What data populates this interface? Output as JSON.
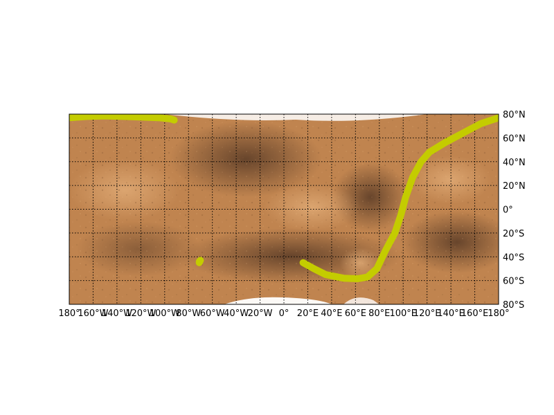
{
  "map": {
    "projection": "equirectangular",
    "lon_range": [
      -180,
      180
    ],
    "lat_range": [
      -80,
      80
    ],
    "grid": true,
    "meridians_step": 20,
    "parallels_step": 20,
    "colors": {
      "terrain_base": "#c0844f",
      "terrain_dark": "#6e4a2e",
      "terrain_light": "#d9a06a",
      "polar_cap": "#ffffff",
      "track": "#c4cc00"
    },
    "lat_labels": [
      "80°N",
      "60°N",
      "40°N",
      "20°N",
      "0°",
      "20°S",
      "40°S",
      "60°S",
      "80°S"
    ],
    "lon_labels": [
      "180°",
      "160°W",
      "140°W",
      "120°W",
      "100°W",
      "80°W",
      "60°W",
      "40°W",
      "20°W",
      "0°",
      "20°E",
      "40°E",
      "60°E",
      "80°E",
      "100°E",
      "120°E",
      "140°E",
      "160°E",
      "180°"
    ]
  },
  "chart_data": {
    "type": "line",
    "xlabel": "",
    "ylabel": "",
    "xlim": [
      -180,
      180
    ],
    "ylim": [
      -80,
      80
    ],
    "series": [
      {
        "segments": [
          [
            [
              -180,
              77
            ],
            [
              -165,
              78
            ],
            [
              -150,
              78.5
            ],
            [
              -135,
              78
            ],
            [
              -120,
              77.5
            ],
            [
              -105,
              77
            ],
            [
              -95,
              76
            ],
            [
              -92,
              75
            ]
          ],
          [
            [
              -71,
              -45
            ],
            [
              -70,
              -43
            ],
            [
              -71,
              -44
            ]
          ],
          [
            [
              16,
              -45
            ],
            [
              25,
              -50
            ],
            [
              35,
              -55
            ],
            [
              50,
              -58
            ],
            [
              62,
              -58.5
            ],
            [
              70,
              -57
            ],
            [
              78,
              -50
            ],
            [
              85,
              -35
            ],
            [
              93,
              -20
            ],
            [
              98,
              -5
            ],
            [
              102,
              10
            ],
            [
              108,
              27
            ],
            [
              115,
              40
            ],
            [
              122,
              48
            ],
            [
              135,
              56
            ],
            [
              150,
              64
            ],
            [
              165,
              72
            ],
            [
              180,
              77
            ]
          ]
        ]
      }
    ]
  }
}
